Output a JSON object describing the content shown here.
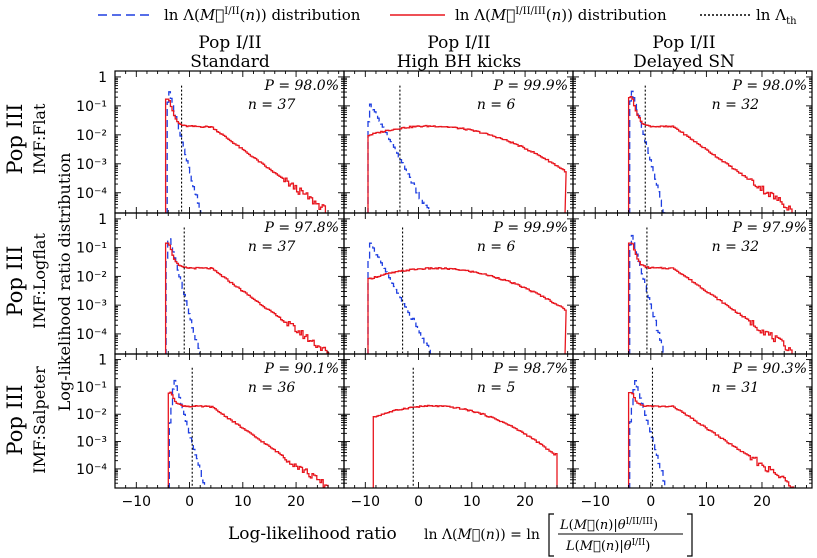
{
  "legend": {
    "entries": [
      {
        "label": "ln Λ(M⃗^{I/II}(n)) distribution",
        "color": "#1f3fe0",
        "style": "dashed"
      },
      {
        "label": "ln Λ(M⃗^{I/II/III}(n)) distribution",
        "color": "#e8161e",
        "style": "solid"
      },
      {
        "label": "ln Λ_th",
        "color": "#000000",
        "style": "dotted"
      }
    ]
  },
  "columns": [
    {
      "line1": "Pop I/II",
      "line2": "Standard"
    },
    {
      "line1": "Pop I/II",
      "line2": "High BH kicks"
    },
    {
      "line1": "Pop I/II",
      "line2": "Delayed SN"
    }
  ],
  "rows": [
    {
      "line1": "Pop III",
      "line2": "IMF:Flat"
    },
    {
      "line1": "Pop III",
      "line2": "IMF:Logflat"
    },
    {
      "line1": "Pop III",
      "line2": "IMF:Salpeter"
    }
  ],
  "axes": {
    "ylabel": "Log-likelihood ratio distribution",
    "xlabel": "Log-likelihood ratio",
    "xlabel_formula": "ln Λ(M⃗(n)) = ln [ L(M⃗(n)|θ^{I/II/III}) / L(M⃗(n)|θ^{I/II}) ]",
    "xticks": [
      -10,
      0,
      10,
      20
    ],
    "xtick_labels": [
      "−10",
      "0",
      "10",
      "20"
    ],
    "yticks": [
      1,
      0.1,
      0.01,
      0.001,
      0.0001
    ],
    "ytick_labels": [
      "1",
      "10⁻¹",
      "10⁻²",
      "10⁻³",
      "10⁻⁴"
    ]
  },
  "chart_data": {
    "type": "line",
    "layout": "3x3 grid of log-scale histograms",
    "xlim": [
      -14,
      29
    ],
    "ylim": [
      2e-05,
      1.6
    ],
    "yscale": "log",
    "grid": false,
    "legend_position": "top",
    "panels": [
      {
        "row": 0,
        "col": 0,
        "P": "P = 98.0%",
        "n": "n = 37",
        "threshold": -1.5,
        "blue": {
          "start": -4.2,
          "peak_x": -4.0,
          "peak": 0.35,
          "shape": "narrow",
          "decay": 0.72
        },
        "red": {
          "start": -4.5,
          "end": 26,
          "peak_x": -4.0,
          "peak": 0.18,
          "plateau": 0.02,
          "plateau_end": 4,
          "tail": 2.1e-05,
          "shape": "spike"
        }
      },
      {
        "row": 0,
        "col": 1,
        "P": "P = 99.9%",
        "n": "n = 6",
        "threshold": -3.5,
        "blue": {
          "start": -9.5,
          "peak_x": -9.2,
          "peak": 0.12,
          "shape": "wide",
          "decay": 0.34
        },
        "red": {
          "start": -9.5,
          "end": 27.5,
          "peak_x": 2,
          "peak": 0.02,
          "sigma": 9.5,
          "shape": "gauss"
        }
      },
      {
        "row": 0,
        "col": 2,
        "P": "P = 98.0%",
        "n": "n = 32",
        "threshold": -1.0,
        "blue": {
          "start": -3.8,
          "peak_x": -3.6,
          "peak": 0.38,
          "shape": "narrow",
          "decay": 0.72
        },
        "red": {
          "start": -4.0,
          "end": 26,
          "peak_x": -3.5,
          "peak": 0.2,
          "plateau": 0.02,
          "plateau_end": 4,
          "tail": 2.1e-05,
          "shape": "spike"
        }
      },
      {
        "row": 1,
        "col": 0,
        "P": "P = 97.8%",
        "n": "n = 37",
        "threshold": -1.0,
        "blue": {
          "start": -4.4,
          "peak_x": -4.0,
          "peak": 0.28,
          "shape": "narrow",
          "decay": 0.72
        },
        "red": {
          "start": -4.5,
          "end": 26,
          "peak_x": -4.0,
          "peak": 0.15,
          "plateau": 0.02,
          "plateau_end": 4,
          "tail": 2.1e-05,
          "shape": "spike"
        }
      },
      {
        "row": 1,
        "col": 1,
        "P": "P = 99.9%",
        "n": "n = 6",
        "threshold": -3.0,
        "blue": {
          "start": -9.5,
          "peak_x": -9.2,
          "peak": 0.15,
          "shape": "wide",
          "decay": 0.34
        },
        "red": {
          "start": -9.5,
          "end": 27.5,
          "peak_x": 3,
          "peak": 0.019,
          "sigma": 9.5,
          "shape": "gauss"
        }
      },
      {
        "row": 1,
        "col": 2,
        "P": "P = 97.9%",
        "n": "n = 32",
        "threshold": -0.7,
        "blue": {
          "start": -3.8,
          "peak_x": -3.6,
          "peak": 0.3,
          "shape": "narrow",
          "decay": 0.72
        },
        "red": {
          "start": -4.0,
          "end": 26,
          "peak_x": -3.5,
          "peak": 0.15,
          "plateau": 0.02,
          "plateau_end": 4,
          "tail": 2.1e-05,
          "shape": "spike"
        }
      },
      {
        "row": 2,
        "col": 0,
        "P": "P = 90.1%",
        "n": "n = 36",
        "threshold": 0.5,
        "blue": {
          "start": -3.8,
          "peak_x": -3.0,
          "peak": 0.2,
          "shape": "narrow",
          "decay": 0.7
        },
        "red": {
          "start": -4.0,
          "end": 26,
          "peak_x": -3.5,
          "peak": 0.06,
          "plateau": 0.02,
          "plateau_end": 4,
          "tail": 2.1e-05,
          "shape": "spike"
        }
      },
      {
        "row": 2,
        "col": 1,
        "P": "P = 98.7%",
        "n": "n = 5",
        "threshold": -1.0,
        "blue": {
          "start": -8.5,
          "peak_x": -6.0,
          "peak": 0.05,
          "shape": "wide",
          "decay": 0.5
        },
        "red": {
          "start": -8.5,
          "end": 26,
          "peak_x": 2.5,
          "peak": 0.02,
          "sigma": 8,
          "shape": "gauss"
        }
      },
      {
        "row": 2,
        "col": 2,
        "P": "P = 90.3%",
        "n": "n = 31",
        "threshold": 0.3,
        "blue": {
          "start": -3.8,
          "peak_x": -3.0,
          "peak": 0.2,
          "shape": "narrow",
          "decay": 0.7
        },
        "red": {
          "start": -4.0,
          "end": 26,
          "peak_x": -3.5,
          "peak": 0.06,
          "plateau": 0.02,
          "plateau_end": 4,
          "tail": 2.1e-05,
          "shape": "spike"
        }
      }
    ]
  }
}
